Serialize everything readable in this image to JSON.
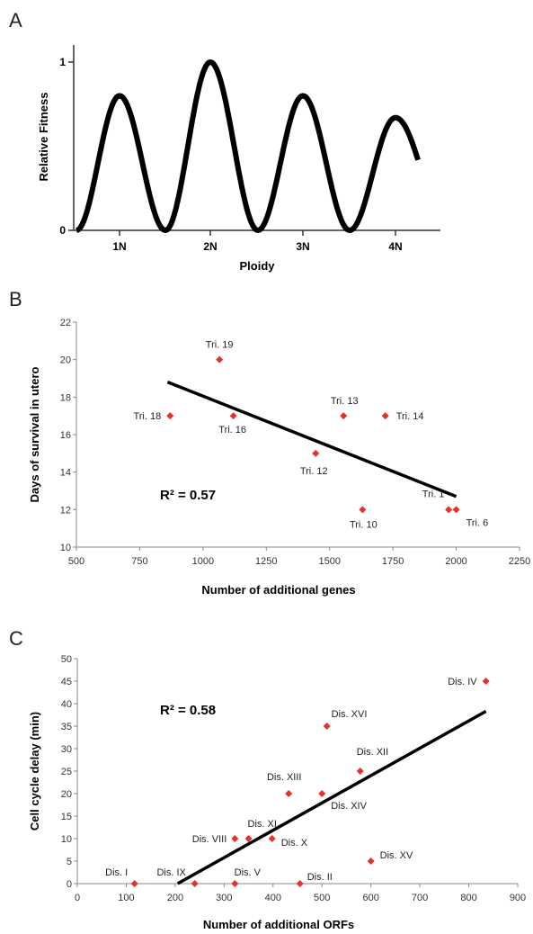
{
  "panels": {
    "a": {
      "letter": "A"
    },
    "b": {
      "letter": "B"
    },
    "c": {
      "letter": "C"
    }
  },
  "chart_data": [
    {
      "type": "line",
      "panel": "A",
      "xlabel": "Ploidy",
      "ylabel": "Relative Fitness",
      "x_ticks": [
        "1N",
        "2N",
        "3N",
        "4N"
      ],
      "y_ticks": [
        "0",
        "1"
      ],
      "ylim": [
        0,
        1
      ],
      "series": [
        {
          "color": "#000000",
          "peaks": [
            {
              "x": "1N",
              "y": 0.8
            },
            {
              "x": "2N",
              "y": 1.0
            },
            {
              "x": "3N",
              "y": 0.8
            },
            {
              "x": "4N",
              "y": 0.67
            }
          ]
        }
      ]
    },
    {
      "type": "scatter",
      "panel": "B",
      "xlabel": "Number of additional genes",
      "ylabel": "Days of survival in utero",
      "xlim": [
        500,
        2250
      ],
      "ylim": [
        10,
        22
      ],
      "x_ticks": [
        500,
        750,
        1000,
        1250,
        1500,
        1750,
        2000,
        2250
      ],
      "y_ticks": [
        10,
        12,
        14,
        16,
        18,
        20,
        22
      ],
      "annotation": "R² = 0.57",
      "marker_color": "#e8302a",
      "points": [
        {
          "label": "Tri. 19",
          "x": 1065,
          "y": 20
        },
        {
          "label": "Tri. 18",
          "x": 870,
          "y": 17
        },
        {
          "label": "Tri. 16",
          "x": 1120,
          "y": 17
        },
        {
          "label": "Tri. 13",
          "x": 1555,
          "y": 17
        },
        {
          "label": "Tri. 14",
          "x": 1720,
          "y": 17
        },
        {
          "label": "Tri. 12",
          "x": 1445,
          "y": 15
        },
        {
          "label": "Tri. 10",
          "x": 1630,
          "y": 12
        },
        {
          "label": "Tri. 1",
          "x": 1970,
          "y": 12
        },
        {
          "label": "Tri. 6",
          "x": 2000,
          "y": 12
        }
      ],
      "trendline": {
        "x": [
          860,
          2000
        ],
        "y": [
          18.8,
          12.7
        ]
      }
    },
    {
      "type": "scatter",
      "panel": "C",
      "xlabel": "Number of additional ORFs",
      "ylabel": "Cell cycle delay (min)",
      "xlim": [
        0,
        900
      ],
      "ylim": [
        0,
        50
      ],
      "x_ticks": [
        0,
        100,
        200,
        300,
        400,
        500,
        600,
        700,
        800,
        900
      ],
      "y_ticks": [
        0,
        5,
        10,
        15,
        20,
        25,
        30,
        35,
        40,
        45,
        50
      ],
      "annotation": "R² = 0.58",
      "marker_color": "#e8302a",
      "points": [
        {
          "label": "Dis. I",
          "x": 117,
          "y": 0
        },
        {
          "label": "Dis. IX",
          "x": 240,
          "y": 0
        },
        {
          "label": "Dis. V",
          "x": 322,
          "y": 0
        },
        {
          "label": "Dis. II",
          "x": 455,
          "y": 0
        },
        {
          "label": "Dis. VIII",
          "x": 322,
          "y": 10
        },
        {
          "label": "Dis. XI",
          "x": 350,
          "y": 10
        },
        {
          "label": "Dis. X",
          "x": 398,
          "y": 10
        },
        {
          "label": "Dis. XIII",
          "x": 432,
          "y": 20
        },
        {
          "label": "Dis. XIV",
          "x": 500,
          "y": 20
        },
        {
          "label": "Dis. XII",
          "x": 578,
          "y": 25
        },
        {
          "label": "Dis. XVI",
          "x": 510,
          "y": 35
        },
        {
          "label": "Dis. XV",
          "x": 600,
          "y": 5
        },
        {
          "label": "Dis. IV",
          "x": 835,
          "y": 45
        }
      ],
      "trendline": {
        "x": [
          205,
          835
        ],
        "y": [
          0,
          38.3
        ]
      }
    }
  ]
}
